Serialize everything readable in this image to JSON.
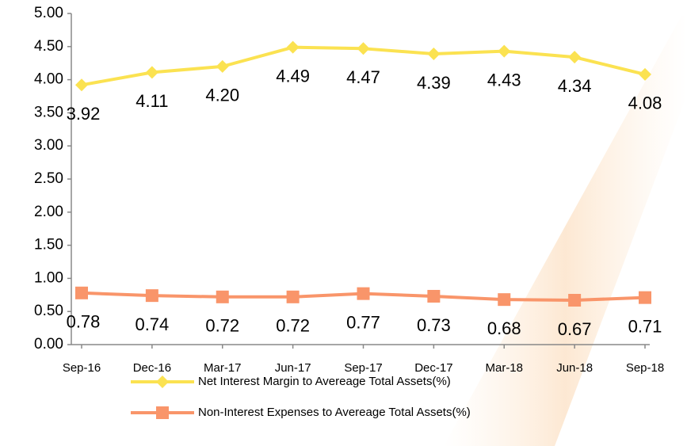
{
  "chart_data": {
    "type": "line",
    "categories": [
      "Sep-16",
      "Dec-16",
      "Mar-17",
      "Jun-17",
      "Sep-17",
      "Dec-17",
      "Mar-18",
      "Jun-18",
      "Sep-18"
    ],
    "series": [
      {
        "name": "Net Interest Margin to Avereage Total Assets(%)",
        "color": "#fbe251",
        "marker": "diamond",
        "values": [
          3.92,
          4.11,
          4.2,
          4.49,
          4.47,
          4.39,
          4.43,
          4.34,
          4.08
        ],
        "value_labels": [
          "3.92",
          "4.11",
          "4.20",
          "4.49",
          "4.47",
          "4.39",
          "4.43",
          "4.34",
          "4.08"
        ]
      },
      {
        "name": "Non-Interest Expenses to Avereage Total Assets(%)",
        "color": "#f9956a",
        "marker": "square",
        "values": [
          0.78,
          0.74,
          0.72,
          0.72,
          0.77,
          0.73,
          0.68,
          0.67,
          0.71
        ],
        "value_labels": [
          "0.78",
          "0.74",
          "0.72",
          "0.72",
          "0.77",
          "0.73",
          "0.68",
          "0.67",
          "0.71"
        ]
      }
    ],
    "ylim": [
      0,
      5
    ],
    "yticks": [
      {
        "value": 0,
        "label": "0.00"
      },
      {
        "value": 0.5,
        "label": "0.50"
      },
      {
        "value": 1,
        "label": "1.00"
      },
      {
        "value": 1.5,
        "label": "1.50"
      },
      {
        "value": 2,
        "label": "2.00"
      },
      {
        "value": 2.5,
        "label": "2.50"
      },
      {
        "value": 3,
        "label": "3.00"
      },
      {
        "value": 3.5,
        "label": "3.50"
      },
      {
        "value": 4,
        "label": "4.00"
      },
      {
        "value": 4.5,
        "label": "4.50"
      },
      {
        "value": 5,
        "label": "5.00"
      }
    ],
    "legend": "bottom"
  }
}
